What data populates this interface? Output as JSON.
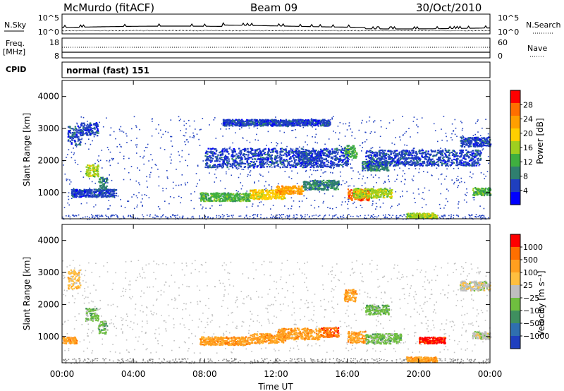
{
  "header": {
    "station": "McMurdo (fitACF)",
    "beam": "Beam 09",
    "date": "30/Oct/2010"
  },
  "top_panel": {
    "left_label": "N.Sky",
    "right_label": "N.Search",
    "left_ticks": [
      "10^5",
      "10^0"
    ],
    "right_ticks": [
      "10^5",
      "10^0"
    ]
  },
  "freq_panel": {
    "left_label_line1": "Freq.",
    "left_label_line2": "[MHz]",
    "right_label": "Nave",
    "left_ticks": [
      "18",
      "8"
    ],
    "right_ticks": [
      "60",
      "0"
    ]
  },
  "cpid": {
    "label": "CPID",
    "value": "normal (fast) 151"
  },
  "colors": {
    "scatter_blue": "#1f3fbf",
    "ground_scatter": "#8a8a8a"
  },
  "chart_data": [
    {
      "type": "heatmap",
      "quantity": "power",
      "ylabel": "Slant Range [km]",
      "ylim": [
        180,
        4500
      ],
      "yticks": [
        "1000",
        "2000",
        "3000",
        "4000"
      ],
      "colorbar_label": "Power [dB]",
      "colorbar_ticks": [
        "28",
        "24",
        "20",
        "16",
        "12",
        "8",
        "4"
      ],
      "colorbar_colors": [
        "#0000ff",
        "#1f3fbf",
        "#2f7f6f",
        "#3faf3f",
        "#9fcf1f",
        "#ffcf00",
        "#ff9f00",
        "#ff6f00",
        "#ff0000"
      ],
      "features": [
        {
          "t0": 0.3,
          "t1": 1.0,
          "r": 2800,
          "dr": 300,
          "level": 1
        },
        {
          "t0": 1.0,
          "t1": 2.0,
          "r": 3000,
          "dr": 200,
          "level": 1
        },
        {
          "t0": 1.3,
          "t1": 2.0,
          "r": 1700,
          "dr": 200,
          "level": 4
        },
        {
          "t0": 2.0,
          "t1": 2.5,
          "r": 1300,
          "dr": 200,
          "level": 2
        },
        {
          "t0": 0.5,
          "t1": 3.0,
          "r": 1000,
          "dr": 120,
          "level": 1
        },
        {
          "t0": 7.7,
          "t1": 10.5,
          "r": 880,
          "dr": 130,
          "level": 3
        },
        {
          "t0": 10.5,
          "t1": 12.5,
          "r": 960,
          "dr": 150,
          "level": 5
        },
        {
          "t0": 12.0,
          "t1": 13.5,
          "r": 1100,
          "dr": 130,
          "level": 6
        },
        {
          "t0": 13.5,
          "t1": 15.5,
          "r": 1250,
          "dr": 150,
          "level": 2
        },
        {
          "t0": 13.2,
          "t1": 14.5,
          "r": 2100,
          "dr": 200,
          "level": 1
        },
        {
          "t0": 16.0,
          "t1": 17.2,
          "r": 950,
          "dr": 180,
          "level": 7
        },
        {
          "t0": 16.3,
          "t1": 18.5,
          "r": 1000,
          "dr": 150,
          "level": 4
        },
        {
          "t0": 15.8,
          "t1": 16.5,
          "r": 2300,
          "dr": 200,
          "level": 3
        },
        {
          "t0": 16.8,
          "t1": 18.3,
          "r": 1850,
          "dr": 150,
          "level": 2
        },
        {
          "t0": 19.3,
          "t1": 21.0,
          "r": 300,
          "dr": 80,
          "level": 4
        },
        {
          "t0": 22.3,
          "t1": 24.0,
          "r": 2600,
          "dr": 150,
          "level": 1
        },
        {
          "t0": 23.0,
          "t1": 24.0,
          "r": 1050,
          "dr": 120,
          "level": 3
        },
        {
          "t0": 8.0,
          "t1": 16.0,
          "r": 2100,
          "dr": 300,
          "level": 1
        },
        {
          "t0": 17.0,
          "t1": 23.5,
          "r": 2100,
          "dr": 250,
          "level": 1
        },
        {
          "t0": 9.0,
          "t1": 15.0,
          "r": 3200,
          "dr": 100,
          "level": 1
        }
      ]
    },
    {
      "type": "heatmap",
      "quantity": "velocity",
      "ylabel": "Slant Range [km]",
      "xlabel": "Time UT",
      "ylim": [
        180,
        4500
      ],
      "yticks": [
        "1000",
        "2000",
        "3000",
        "4000"
      ],
      "xticks": [
        "00:00",
        "04:00",
        "08:00",
        "12:00",
        "16:00",
        "20:00",
        "00:00"
      ],
      "xlim": [
        0,
        24
      ],
      "colorbar_label": "Velocity [m s⁻¹]",
      "colorbar_ticks": [
        "1000",
        "500",
        "100",
        "25",
        "−25",
        "−100",
        "−500",
        "−1000"
      ],
      "colorbar_colors": [
        "#1f3fbf",
        "#2f6faf",
        "#3f8f5f",
        "#6fbf3f",
        "#bfbfbf",
        "#ffbf3f",
        "#ff9f1f",
        "#ff6f00",
        "#ff0000"
      ],
      "features": [
        {
          "t0": 0.3,
          "t1": 1.0,
          "r": 2800,
          "dr": 300,
          "level": 5
        },
        {
          "t0": 1.3,
          "t1": 2.0,
          "r": 1700,
          "dr": 200,
          "level": 3
        },
        {
          "t0": 2.0,
          "t1": 2.5,
          "r": 1300,
          "dr": 200,
          "level": 3
        },
        {
          "t0": 7.7,
          "t1": 10.5,
          "r": 880,
          "dr": 130,
          "level": 6
        },
        {
          "t0": 10.5,
          "t1": 12.5,
          "r": 960,
          "dr": 150,
          "level": 6
        },
        {
          "t0": 12.0,
          "t1": 14.5,
          "r": 1100,
          "dr": 180,
          "level": 6
        },
        {
          "t0": 14.5,
          "t1": 15.5,
          "r": 1150,
          "dr": 150,
          "level": 7
        },
        {
          "t0": 15.8,
          "t1": 16.5,
          "r": 2300,
          "dr": 200,
          "level": 6
        },
        {
          "t0": 16.0,
          "t1": 17.0,
          "r": 1000,
          "dr": 180,
          "level": 6
        },
        {
          "t0": 17.0,
          "t1": 19.0,
          "r": 950,
          "dr": 160,
          "level": 3
        },
        {
          "t0": 17.0,
          "t1": 18.3,
          "r": 1850,
          "dr": 150,
          "level": 3
        },
        {
          "t0": 19.3,
          "t1": 21.0,
          "r": 300,
          "dr": 80,
          "level": 6
        },
        {
          "t0": 22.3,
          "t1": 24.0,
          "r": 2600,
          "dr": 150,
          "level": 4
        },
        {
          "t0": 23.0,
          "t1": 24.0,
          "r": 1050,
          "dr": 120,
          "level": 4
        },
        {
          "t0": 20.0,
          "t1": 21.5,
          "r": 900,
          "dr": 100,
          "level": 8
        },
        {
          "t0": 0.0,
          "t1": 0.8,
          "r": 900,
          "dr": 100,
          "level": 6
        }
      ]
    }
  ]
}
